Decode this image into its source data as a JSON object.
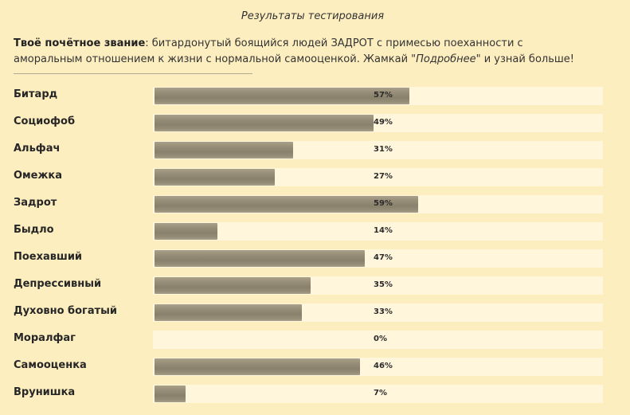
{
  "header": {
    "title": "Результаты тестирования"
  },
  "summary": {
    "prefix": "Твоё почётное звание",
    "text": ": битардонутый боящийся людей ЗАДРОТ с примесью поеханности с аморальным отношением к жизни с нормальной самооценкой. Жамкай \"",
    "link_word": "Подробнее",
    "suffix": "\" и узнай больше!"
  },
  "results": [
    {
      "label": "Битард",
      "value": 57,
      "value_label": "57%"
    },
    {
      "label": "Социофоб",
      "value": 49,
      "value_label": "49%"
    },
    {
      "label": "Альфач",
      "value": 31,
      "value_label": "31%"
    },
    {
      "label": "Омежка",
      "value": 27,
      "value_label": "27%"
    },
    {
      "label": "Задрот",
      "value": 59,
      "value_label": "59%"
    },
    {
      "label": "Быдло",
      "value": 14,
      "value_label": "14%"
    },
    {
      "label": "Поехавший",
      "value": 47,
      "value_label": "47%"
    },
    {
      "label": "Депрессивный",
      "value": 35,
      "value_label": "35%"
    },
    {
      "label": "Духовно богатый",
      "value": 33,
      "value_label": "33%"
    },
    {
      "label": "Моралфаг",
      "value": 0,
      "value_label": "0%"
    },
    {
      "label": "Самооценка",
      "value": 46,
      "value_label": "46%"
    },
    {
      "label": "Врунишка",
      "value": 7,
      "value_label": "7%"
    }
  ],
  "colors": {
    "background": "#fdeec0",
    "track": "#fff6dc",
    "fill": "#968d78"
  }
}
